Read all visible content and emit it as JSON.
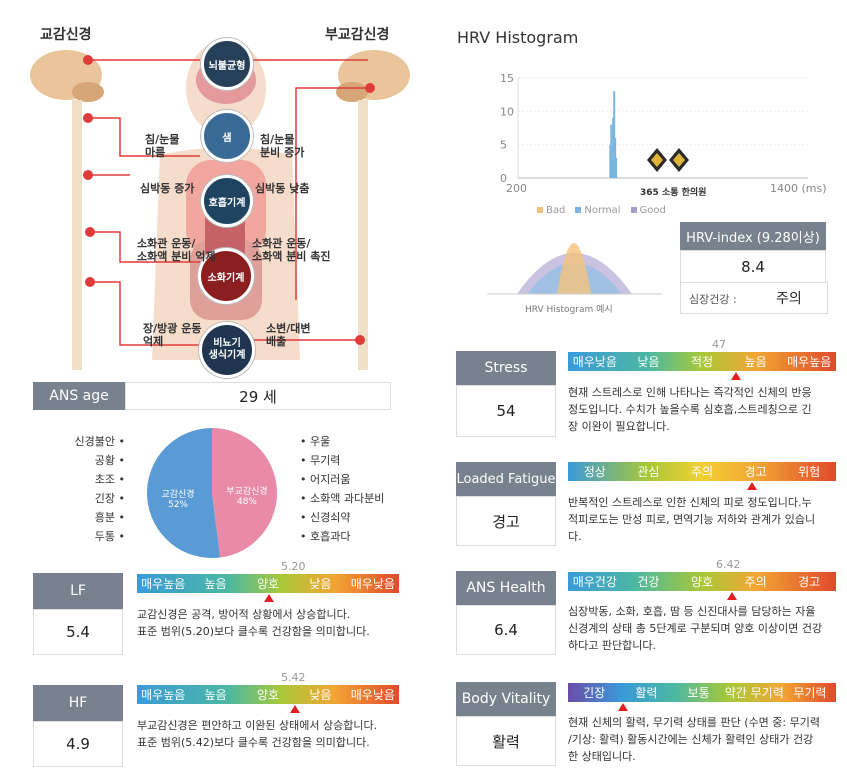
{
  "anatomy": {
    "left_title": "교감신경",
    "right_title": "부교감신경",
    "nodes": [
      "뇌불균형",
      "샘",
      "호흡기계",
      "소화기계",
      "비뇨기\n생식기계"
    ],
    "left_labels": [
      "침/눈물\n마름",
      "심박동 증가",
      "소화관 운동/\n소화액 분비 억제",
      "장/방광 운동\n억제"
    ],
    "right_labels": [
      "침/눈물\n분비 증가",
      "심박동 낮춤",
      "소화관 운동/\n소화액 분비 촉진",
      "소변/대변\n배출"
    ]
  },
  "ans_age": {
    "label": "ANS age",
    "value": "29 세"
  },
  "pie": {
    "left_list": [
      "신경불안 •",
      "공황 •",
      "초조 •",
      "긴장 •",
      "흥분 •",
      "두통 •"
    ],
    "right_list": [
      "• 우울",
      "• 무기력",
      "• 어지러움",
      "• 소화액 과다분비",
      "• 신경쇠약",
      "• 호흡과다"
    ],
    "slices": [
      {
        "label": "교감신경",
        "pct": "52%",
        "value": 52,
        "color": "#5b9bd5"
      },
      {
        "label": "부교감신경",
        "pct": "48%",
        "value": 48,
        "color": "#e88aa8"
      }
    ]
  },
  "lf": {
    "label": "LF",
    "value": "5.4",
    "marker": "5.20",
    "scale": [
      "매우높음",
      "높음",
      "양호",
      "낮음",
      "매우낮음"
    ],
    "desc": "교감신경은 공격, 방어적 상황에서 상승합니다.\n표준 범위(5.20)보다 클수록 건강함을 의미합니다."
  },
  "hf": {
    "label": "HF",
    "value": "4.9",
    "marker": "5.42",
    "scale": [
      "매우높음",
      "높음",
      "양호",
      "낮음",
      "매우낮음"
    ],
    "desc": "부교감신경은 편안하고 이완된 상태에서 상승합니다.\n표준 범위(5.42)보다 클수록 건강함을 의미합니다."
  },
  "histogram": {
    "title": "HRV Histogram",
    "y_ticks": [
      "15",
      "10",
      "5",
      "0"
    ],
    "x_start": "200",
    "x_end": "1400 (ms)",
    "logo": "365 소통 한의원",
    "legend": [
      "Bad",
      "Normal",
      "Good"
    ],
    "example_caption": "HRV Histogram 예시"
  },
  "chart_data": {
    "type": "bar",
    "title": "HRV Histogram",
    "xlabel": "(ms)",
    "xlim": [
      200,
      1400
    ],
    "ylim": [
      0,
      15
    ],
    "x": [
      582,
      586,
      590,
      594,
      598,
      602,
      606
    ],
    "values": [
      5,
      8,
      3,
      9,
      13,
      6,
      3
    ]
  },
  "hrv_index": {
    "label": "HRV-index (9.28이상)",
    "value": "8.4",
    "heart_label": "심장건강 :",
    "heart_value": "주의"
  },
  "stress": {
    "label": "Stress",
    "value": "54",
    "marker": "47",
    "scale": [
      "매우낮음",
      "낮음",
      "적정",
      "높음",
      "매우높음"
    ],
    "desc": "현재 스트레스로 인해 나타나는 즉각적인 신체의 반응\n정도입니다. 수치가 높을수록 심호흡,스트레칭으로 긴\n장 이완이 필요합니다."
  },
  "fatigue": {
    "label": "Loaded Fatigue",
    "value": "경고",
    "scale": [
      "정상",
      "관심",
      "주의",
      "경고",
      "위험"
    ],
    "desc": "반복적인 스트레스로 인한 신체의 피로 정도입니다.누\n적피로도는 만성 피로, 면역기능 저하와 관계가 있습니\n다."
  },
  "ans_health": {
    "label": "ANS Health",
    "value": "6.4",
    "marker": "6.42",
    "scale": [
      "매우건강",
      "건강",
      "양호",
      "주의",
      "경고"
    ],
    "desc": "심장박동, 소화, 호흡, 땀 등 신진대사를 담당하는 자율\n신경계의 상태 총 5단계로 구분되며 양호 이상이면 건강\n하다고 판단합니다."
  },
  "vitality": {
    "label": "Body Vitality",
    "value": "활력",
    "scale": [
      "긴장",
      "활력",
      "보통",
      "약간 무기력",
      "무기력"
    ],
    "desc": "현재 신체의 활력, 무기력 상태를 판단 (수면 중: 무기력\n/기상: 활력) 활동시간에는 신체가 활력인 상태가 건강\n한 상태입니다."
  }
}
